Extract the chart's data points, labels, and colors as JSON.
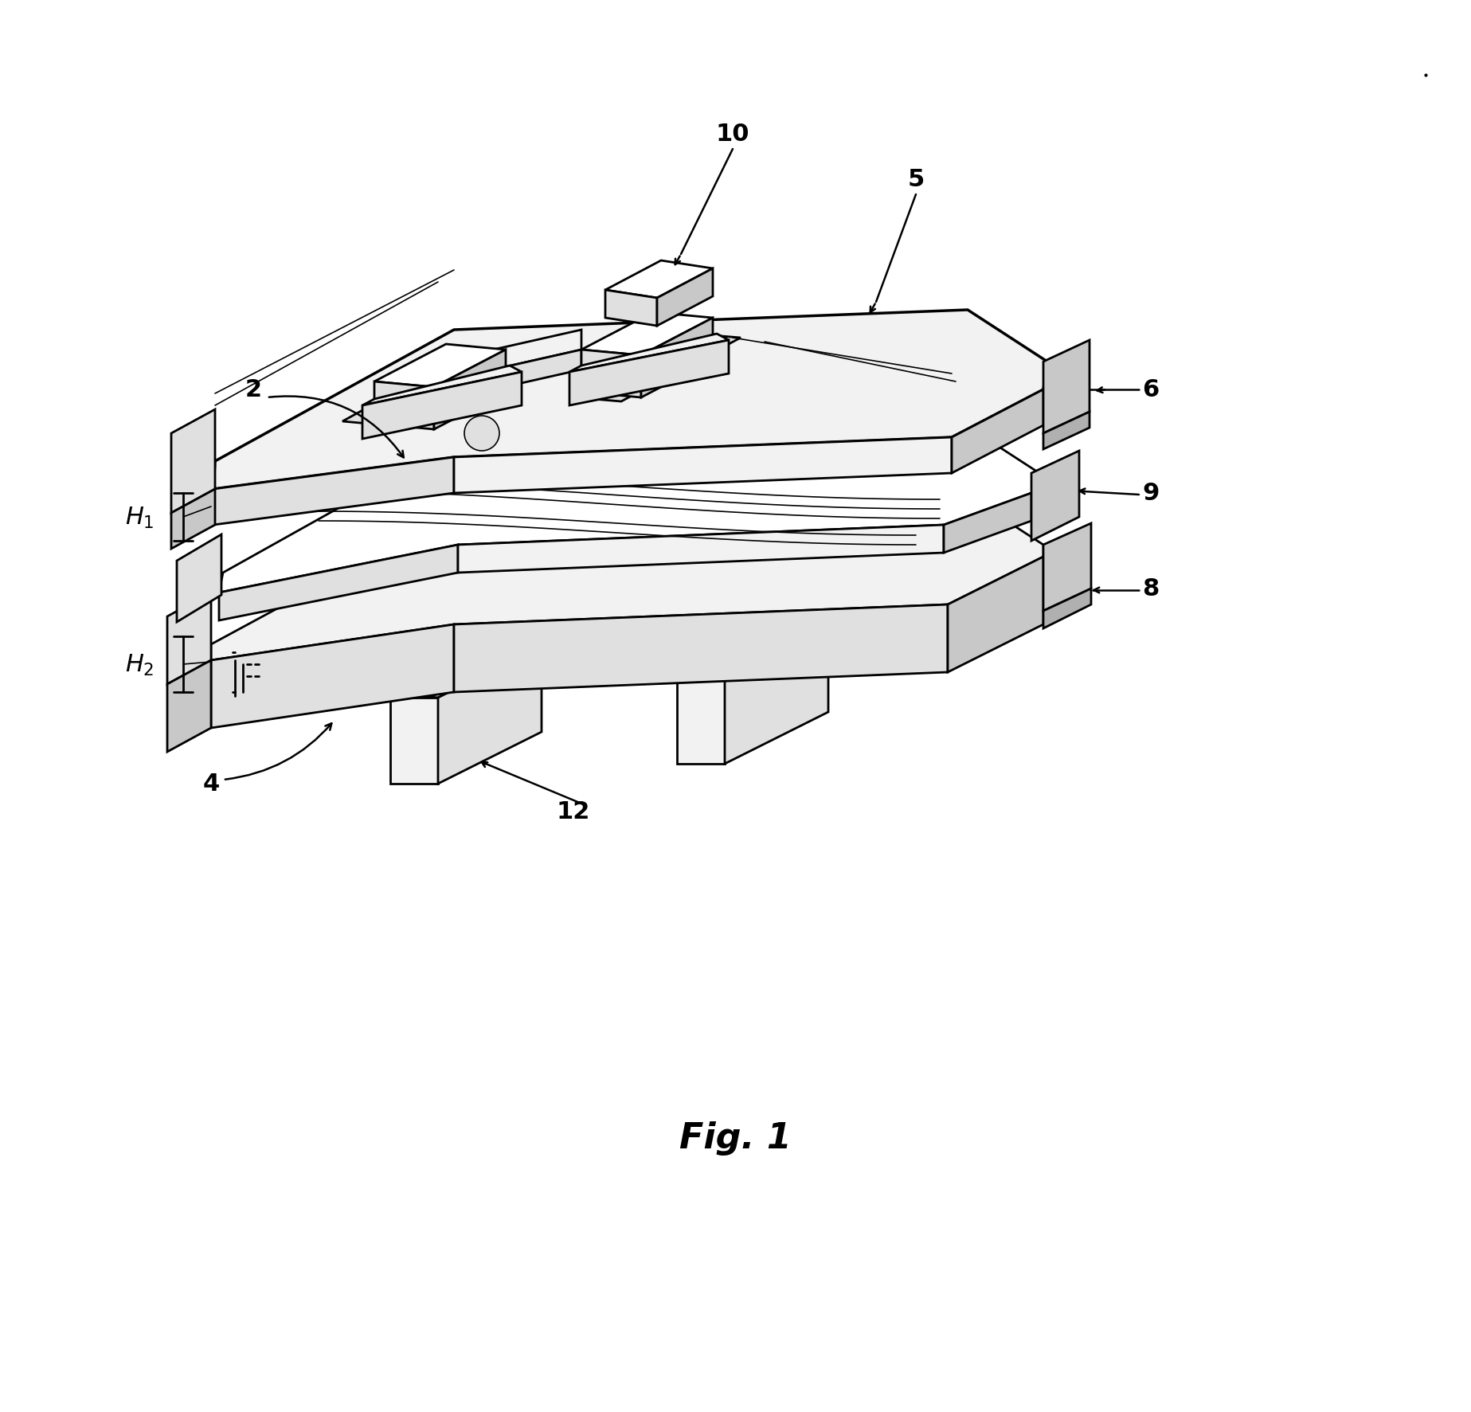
{
  "background_color": "#ffffff",
  "fig_label": "Fig. 1",
  "fig_label_fontsize": 32,
  "fig_label_style": "italic",
  "fig_label_weight": "bold",
  "label_fontsize": 22,
  "lw_main": 2.0,
  "lw_thick": 2.5,
  "lw_thin": 1.2,
  "lw_ann": 1.8,
  "colors": {
    "white": "#ffffff",
    "light": "#f2f2f2",
    "mid": "#e0e0e0",
    "dark": "#c8c8c8",
    "darker": "#b0b0b0"
  }
}
